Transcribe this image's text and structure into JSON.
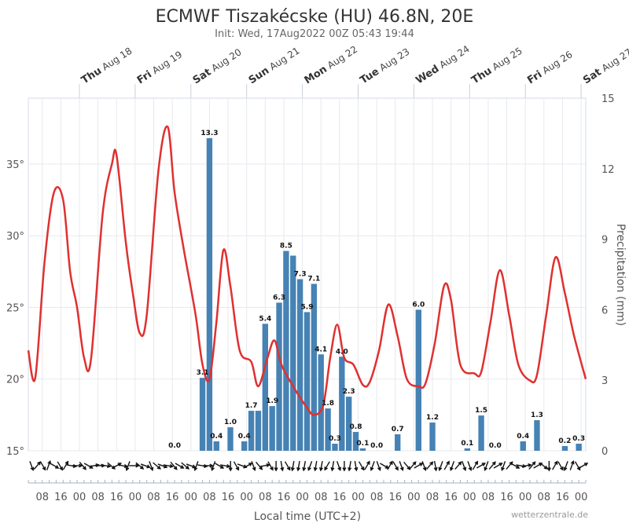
{
  "chart_data": {
    "type": "bar+line",
    "title": "ECMWF Tiszakécske (HU) 46.8N, 20E",
    "subtitle": "Init: Wed, 17Aug2022 00Z 05:43 19:44",
    "xlabel": "Local time (UTC+2)",
    "ylabel_left": "",
    "ylabel_right": "Precipitation (mm)",
    "credit": "wetterzentrale.de",
    "x_start": "2022-08-17T02:00",
    "x_end": "2022-08-27T02:00",
    "x_tick_labels": [
      "08",
      "16",
      "00",
      "08",
      "16",
      "00",
      "08",
      "16",
      "00",
      "08",
      "16",
      "00",
      "08",
      "16",
      "00",
      "08",
      "16",
      "00",
      "08",
      "16",
      "00",
      "08",
      "16",
      "00",
      "08",
      "16",
      "00",
      "08",
      "16",
      "00"
    ],
    "day_labels": [
      {
        "day": "Thu",
        "date": "Aug 18",
        "time": "2022-08-18T00:00"
      },
      {
        "day": "Fri",
        "date": "Aug 19",
        "time": "2022-08-19T00:00"
      },
      {
        "day": "Sat",
        "date": "Aug 20",
        "time": "2022-08-20T00:00"
      },
      {
        "day": "Sun",
        "date": "Aug 21",
        "time": "2022-08-21T00:00"
      },
      {
        "day": "Mon",
        "date": "Aug 22",
        "time": "2022-08-22T00:00"
      },
      {
        "day": "Tue",
        "date": "Aug 23",
        "time": "2022-08-23T00:00"
      },
      {
        "day": "Wed",
        "date": "Aug 24",
        "time": "2022-08-24T00:00"
      },
      {
        "day": "Thu",
        "date": "Aug 25",
        "time": "2022-08-25T00:00"
      },
      {
        "day": "Fri",
        "date": "Aug 26",
        "time": "2022-08-26T00:00"
      },
      {
        "day": "Sat",
        "date": "Aug 27",
        "time": "2022-08-27T00:00"
      }
    ],
    "temperature": {
      "unit": "°",
      "ylim": [
        15,
        39.6
      ],
      "yticks": [
        15,
        20,
        25,
        30,
        35
      ],
      "ytick_labels": [
        "15°",
        "20°",
        "25°",
        "30°",
        "35°"
      ],
      "color": "#e03030",
      "points": [
        [
          "2022-08-17T02:00",
          22.0
        ],
        [
          "2022-08-17T05:00",
          20.1
        ],
        [
          "2022-08-17T09:00",
          28.2
        ],
        [
          "2022-08-17T13:00",
          33.0
        ],
        [
          "2022-08-17T17:00",
          32.5
        ],
        [
          "2022-08-17T20:00",
          27.5
        ],
        [
          "2022-08-17T23:00",
          25.0
        ],
        [
          "2022-08-18T02:00",
          21.5
        ],
        [
          "2022-08-18T05:00",
          21.4
        ],
        [
          "2022-08-18T10:00",
          31.5
        ],
        [
          "2022-08-18T14:00",
          35.0
        ],
        [
          "2022-08-18T16:00",
          35.6
        ],
        [
          "2022-08-18T20:00",
          29.5
        ],
        [
          "2022-08-18T23:00",
          26.0
        ],
        [
          "2022-08-19T02:00",
          23.2
        ],
        [
          "2022-08-19T05:00",
          24.5
        ],
        [
          "2022-08-19T10:00",
          34.5
        ],
        [
          "2022-08-19T14:00",
          37.6
        ],
        [
          "2022-08-19T17:00",
          33.0
        ],
        [
          "2022-08-19T21:00",
          29.0
        ],
        [
          "2022-08-20T02:00",
          24.5
        ],
        [
          "2022-08-20T05:00",
          21.0
        ],
        [
          "2022-08-20T08:00",
          20.0
        ],
        [
          "2022-08-20T11:00",
          24.0
        ],
        [
          "2022-08-20T14:00",
          29.0
        ],
        [
          "2022-08-20T17:00",
          26.5
        ],
        [
          "2022-08-20T21:00",
          22.0
        ],
        [
          "2022-08-21T02:00",
          21.2
        ],
        [
          "2022-08-21T05:00",
          19.5
        ],
        [
          "2022-08-21T09:00",
          21.5
        ],
        [
          "2022-08-21T12:00",
          22.7
        ],
        [
          "2022-08-21T15:00",
          21.0
        ],
        [
          "2022-08-21T20:00",
          19.5
        ],
        [
          "2022-08-22T02:00",
          18.0
        ],
        [
          "2022-08-22T05:00",
          17.5
        ],
        [
          "2022-08-22T09:00",
          18.2
        ],
        [
          "2022-08-22T12:00",
          21.5
        ],
        [
          "2022-08-22T15:00",
          23.8
        ],
        [
          "2022-08-22T18:00",
          21.5
        ],
        [
          "2022-08-22T22:00",
          21.0
        ],
        [
          "2022-08-23T02:00",
          19.6
        ],
        [
          "2022-08-23T05:00",
          19.8
        ],
        [
          "2022-08-23T09:00",
          22.0
        ],
        [
          "2022-08-23T13:00",
          25.2
        ],
        [
          "2022-08-23T17:00",
          23.0
        ],
        [
          "2022-08-23T21:00",
          20.0
        ],
        [
          "2022-08-24T02:00",
          19.5
        ],
        [
          "2022-08-24T05:00",
          19.7
        ],
        [
          "2022-08-24T09:00",
          22.5
        ],
        [
          "2022-08-24T13:00",
          26.5
        ],
        [
          "2022-08-24T16:00",
          25.5
        ],
        [
          "2022-08-24T20:00",
          21.0
        ],
        [
          "2022-08-25T02:00",
          20.4
        ],
        [
          "2022-08-25T05:00",
          20.5
        ],
        [
          "2022-08-25T09:00",
          24.0
        ],
        [
          "2022-08-25T13:00",
          27.6
        ],
        [
          "2022-08-25T17:00",
          24.5
        ],
        [
          "2022-08-25T21:00",
          21.0
        ],
        [
          "2022-08-26T02:00",
          19.9
        ],
        [
          "2022-08-26T05:00",
          20.3
        ],
        [
          "2022-08-26T09:00",
          24.5
        ],
        [
          "2022-08-26T13:00",
          28.5
        ],
        [
          "2022-08-26T17:00",
          26.0
        ],
        [
          "2022-08-26T21:00",
          23.0
        ],
        [
          "2022-08-27T02:00",
          20.0
        ]
      ]
    },
    "precipitation": {
      "unit": "mm",
      "ylim": [
        0,
        15
      ],
      "yticks": [
        0,
        3,
        6,
        9,
        12,
        15
      ],
      "color": "#4682b4",
      "bars": [
        {
          "t": "2022-08-19T17:00",
          "v": 0.0,
          "label": "0.0"
        },
        {
          "t": "2022-08-20T05:00",
          "v": 3.1,
          "label": "3.1"
        },
        {
          "t": "2022-08-20T08:00",
          "v": 13.3,
          "label": "13.3"
        },
        {
          "t": "2022-08-20T11:00",
          "v": 0.4,
          "label": "0.4"
        },
        {
          "t": "2022-08-20T17:00",
          "v": 1.0,
          "label": "1.0"
        },
        {
          "t": "2022-08-20T23:00",
          "v": 0.4,
          "label": "0.4"
        },
        {
          "t": "2022-08-21T02:00",
          "v": 1.7,
          "label": "1.7"
        },
        {
          "t": "2022-08-21T05:00",
          "v": 1.7,
          "label": ""
        },
        {
          "t": "2022-08-21T08:00",
          "v": 5.4,
          "label": "5.4"
        },
        {
          "t": "2022-08-21T11:00",
          "v": 1.9,
          "label": "1.9"
        },
        {
          "t": "2022-08-21T14:00",
          "v": 6.3,
          "label": "6.3"
        },
        {
          "t": "2022-08-21T17:00",
          "v": 8.5,
          "label": "8.5"
        },
        {
          "t": "2022-08-21T20:00",
          "v": 8.3,
          "label": ""
        },
        {
          "t": "2022-08-21T23:00",
          "v": 7.3,
          "label": "7.3"
        },
        {
          "t": "2022-08-22T02:00",
          "v": 5.9,
          "label": "5.9"
        },
        {
          "t": "2022-08-22T05:00",
          "v": 7.1,
          "label": "7.1"
        },
        {
          "t": "2022-08-22T08:00",
          "v": 4.1,
          "label": "4.1"
        },
        {
          "t": "2022-08-22T11:00",
          "v": 1.8,
          "label": "1.8"
        },
        {
          "t": "2022-08-22T14:00",
          "v": 0.3,
          "label": "0.3"
        },
        {
          "t": "2022-08-22T17:00",
          "v": 4.0,
          "label": "4.0"
        },
        {
          "t": "2022-08-22T20:00",
          "v": 2.3,
          "label": "2.3"
        },
        {
          "t": "2022-08-22T23:00",
          "v": 0.8,
          "label": "0.8"
        },
        {
          "t": "2022-08-23T02:00",
          "v": 0.1,
          "label": "0.1"
        },
        {
          "t": "2022-08-23T08:00",
          "v": 0.0,
          "label": "0.0"
        },
        {
          "t": "2022-08-23T17:00",
          "v": 0.7,
          "label": "0.7"
        },
        {
          "t": "2022-08-24T02:00",
          "v": 6.0,
          "label": "6.0"
        },
        {
          "t": "2022-08-24T08:00",
          "v": 1.2,
          "label": "1.2"
        },
        {
          "t": "2022-08-24T23:00",
          "v": 0.1,
          "label": "0.1"
        },
        {
          "t": "2022-08-25T05:00",
          "v": 1.5,
          "label": "1.5"
        },
        {
          "t": "2022-08-25T11:00",
          "v": 0.0,
          "label": "0.0"
        },
        {
          "t": "2022-08-25T23:00",
          "v": 0.4,
          "label": "0.4"
        },
        {
          "t": "2022-08-26T05:00",
          "v": 1.3,
          "label": "1.3"
        },
        {
          "t": "2022-08-26T17:00",
          "v": 0.2,
          "label": "0.2"
        },
        {
          "t": "2022-08-26T23:00",
          "v": 0.3,
          "label": "0.3"
        }
      ]
    },
    "wind_arrow_angles_deg": [
      160,
      40,
      150,
      20,
      120,
      150,
      30,
      100,
      90,
      140,
      120,
      80,
      90,
      100,
      130,
      60,
      100,
      200,
      90,
      130,
      110,
      160,
      130,
      110,
      100,
      140,
      120,
      130,
      110,
      200,
      100,
      90,
      200,
      120,
      100,
      180,
      150,
      110,
      60,
      160,
      140,
      80,
      150,
      180,
      170,
      150,
      190,
      190,
      190,
      200,
      190,
      190,
      210,
      190,
      160,
      180,
      190,
      170,
      150,
      30,
      200,
      160,
      120,
      30,
      150,
      160,
      140,
      40,
      60,
      160,
      40,
      170,
      200,
      30,
      200,
      40,
      160,
      160,
      30,
      60,
      200,
      40,
      60,
      200,
      40,
      120,
      100,
      80,
      40,
      60,
      130,
      180,
      30,
      150,
      200,
      20,
      150,
      60
    ]
  }
}
